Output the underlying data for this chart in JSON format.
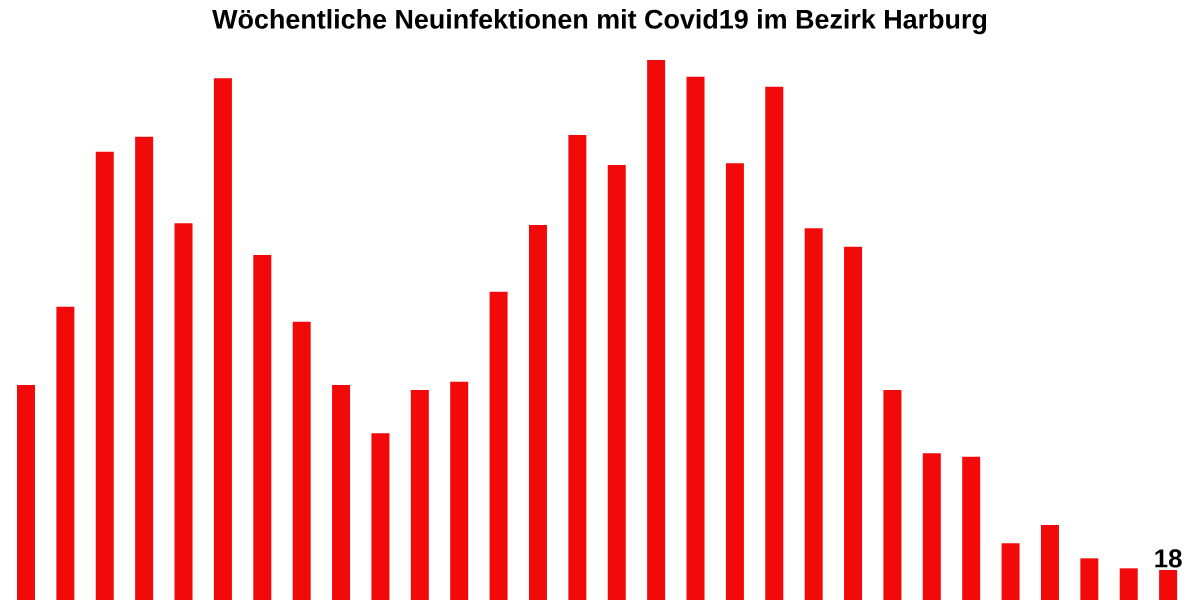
{
  "chart_data": {
    "type": "bar",
    "title": "Wöchentliche Neuinfektionen mit Covid19 im Bezirk Harburg",
    "categories": [
      null,
      null,
      null,
      null,
      null,
      null,
      null,
      null,
      null,
      null,
      null,
      null,
      null,
      null,
      null,
      null,
      null,
      null,
      null,
      null,
      null,
      null,
      null,
      null,
      null,
      null,
      null,
      null,
      null,
      null
    ],
    "values": [
      129,
      176,
      269,
      278,
      226,
      313,
      207,
      167,
      129,
      100,
      126,
      131,
      185,
      225,
      279,
      261,
      324,
      314,
      262,
      308,
      223,
      212,
      126,
      88,
      86,
      34,
      45,
      25,
      19,
      18
    ],
    "value_labels": [
      null,
      null,
      null,
      null,
      null,
      null,
      null,
      null,
      null,
      null,
      null,
      null,
      null,
      null,
      null,
      null,
      null,
      null,
      null,
      null,
      null,
      null,
      null,
      null,
      null,
      null,
      null,
      null,
      null,
      "18"
    ],
    "color": "#f20a0a"
  }
}
